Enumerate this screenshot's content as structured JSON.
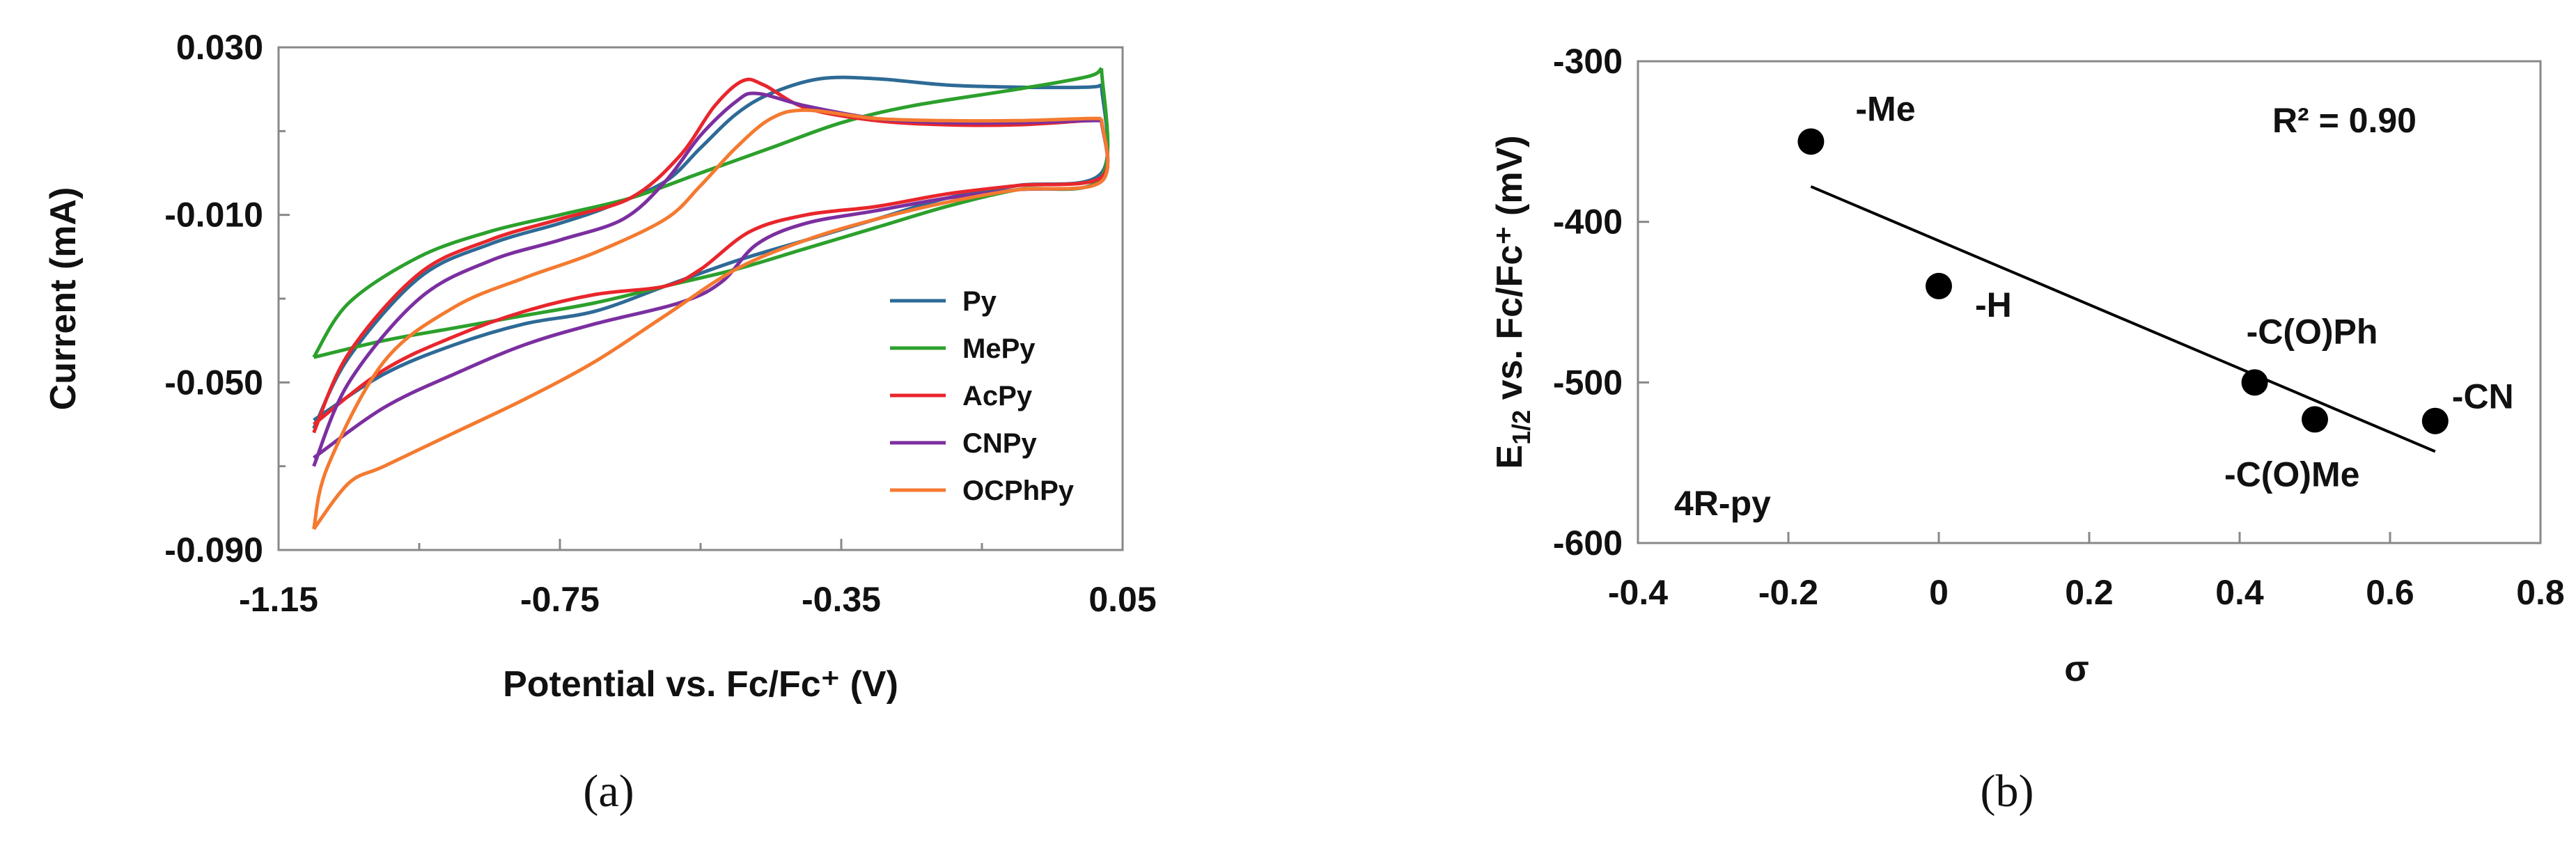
{
  "chart_data": [
    {
      "type": "line",
      "panel": "a",
      "caption": "(a)",
      "xlabel": "Potential vs. Fc/Fc⁺ (V)",
      "ylabel": "Current (mA)",
      "xlim": [
        -1.15,
        0.05
      ],
      "ylim": [
        -0.09,
        0.03
      ],
      "xticks": [
        "-1.15",
        "-0.75",
        "-0.35",
        "0.05"
      ],
      "xtick_values": [
        -1.15,
        -0.75,
        -0.35,
        0.05
      ],
      "yticks": [
        "0.030",
        "-0.010",
        "-0.050",
        "-0.090"
      ],
      "ytick_values": [
        0.03,
        -0.01,
        -0.05,
        -0.09
      ],
      "legend_position": "bottom-right",
      "series": [
        {
          "name": "Py",
          "color": "#2e6a96",
          "forward": [
            [
              -1.1,
              -0.061
            ],
            [
              -1.05,
              -0.044
            ],
            [
              -0.95,
              -0.025
            ],
            [
              -0.85,
              -0.017
            ],
            [
              -0.75,
              -0.012
            ],
            [
              -0.68,
              -0.008
            ],
            [
              -0.6,
              -0.002
            ],
            [
              -0.55,
              0.006
            ],
            [
              -0.5,
              0.014
            ],
            [
              -0.45,
              0.019
            ],
            [
              -0.38,
              0.0225
            ],
            [
              -0.3,
              0.0225
            ],
            [
              -0.2,
              0.021
            ],
            [
              -0.1,
              0.0205
            ],
            [
              0.0,
              0.0205
            ],
            [
              0.02,
              0.021
            ]
          ],
          "reverse": [
            [
              0.02,
              0.021
            ],
            [
              0.02,
              0.0
            ],
            [
              -0.1,
              -0.003
            ],
            [
              -0.2,
              -0.006
            ],
            [
              -0.3,
              -0.011
            ],
            [
              -0.4,
              -0.016
            ],
            [
              -0.5,
              -0.021
            ],
            [
              -0.6,
              -0.027
            ],
            [
              -0.7,
              -0.033
            ],
            [
              -0.8,
              -0.036
            ],
            [
              -0.9,
              -0.041
            ],
            [
              -1.0,
              -0.048
            ],
            [
              -1.1,
              -0.059
            ]
          ]
        },
        {
          "name": "MePy",
          "color": "#2ca02c",
          "forward": [
            [
              -1.1,
              -0.044
            ],
            [
              -1.05,
              -0.031
            ],
            [
              -0.95,
              -0.02
            ],
            [
              -0.85,
              -0.014
            ],
            [
              -0.75,
              -0.01
            ],
            [
              -0.65,
              -0.006
            ],
            [
              -0.55,
              0.0
            ],
            [
              -0.45,
              0.006
            ],
            [
              -0.35,
              0.012
            ],
            [
              -0.25,
              0.016
            ],
            [
              -0.1,
              0.02
            ],
            [
              0.0,
              0.023
            ],
            [
              0.02,
              0.025
            ]
          ],
          "reverse": [
            [
              0.02,
              0.025
            ],
            [
              0.02,
              -0.001
            ],
            [
              -0.1,
              -0.004
            ],
            [
              -0.2,
              -0.008
            ],
            [
              -0.3,
              -0.013
            ],
            [
              -0.4,
              -0.018
            ],
            [
              -0.5,
              -0.023
            ],
            [
              -0.6,
              -0.027
            ],
            [
              -0.7,
              -0.031
            ],
            [
              -0.8,
              -0.034
            ],
            [
              -0.9,
              -0.037
            ],
            [
              -1.0,
              -0.04
            ],
            [
              -1.1,
              -0.044
            ]
          ]
        },
        {
          "name": "AcPy",
          "color": "#e8262c",
          "forward": [
            [
              -1.1,
              -0.062
            ],
            [
              -1.05,
              -0.043
            ],
            [
              -0.95,
              -0.024
            ],
            [
              -0.85,
              -0.016
            ],
            [
              -0.75,
              -0.011
            ],
            [
              -0.65,
              -0.006
            ],
            [
              -0.58,
              0.004
            ],
            [
              -0.53,
              0.016
            ],
            [
              -0.49,
              0.022
            ],
            [
              -0.46,
              0.021
            ],
            [
              -0.4,
              0.0155
            ],
            [
              -0.3,
              0.0125
            ],
            [
              -0.2,
              0.0115
            ],
            [
              -0.1,
              0.0115
            ],
            [
              0.0,
              0.0125
            ],
            [
              0.02,
              0.0125
            ]
          ],
          "reverse": [
            [
              0.02,
              0.0125
            ],
            [
              0.02,
              -0.001
            ],
            [
              -0.1,
              -0.003
            ],
            [
              -0.2,
              -0.005
            ],
            [
              -0.3,
              -0.008
            ],
            [
              -0.4,
              -0.01
            ],
            [
              -0.48,
              -0.014
            ],
            [
              -0.55,
              -0.023
            ],
            [
              -0.6,
              -0.027
            ],
            [
              -0.7,
              -0.029
            ],
            [
              -0.8,
              -0.033
            ],
            [
              -0.9,
              -0.039
            ],
            [
              -1.0,
              -0.047
            ],
            [
              -1.1,
              -0.06
            ]
          ]
        },
        {
          "name": "CNPy",
          "color": "#7b2fa0",
          "forward": [
            [
              -1.1,
              -0.07
            ],
            [
              -1.05,
              -0.05
            ],
            [
              -0.95,
              -0.03
            ],
            [
              -0.85,
              -0.021
            ],
            [
              -0.75,
              -0.016
            ],
            [
              -0.66,
              -0.011
            ],
            [
              -0.6,
              -0.002
            ],
            [
              -0.55,
              0.009
            ],
            [
              -0.5,
              0.017
            ],
            [
              -0.47,
              0.019
            ],
            [
              -0.4,
              0.016
            ],
            [
              -0.3,
              0.013
            ],
            [
              -0.2,
              0.012
            ],
            [
              -0.1,
              0.012
            ],
            [
              0.0,
              0.0125
            ],
            [
              0.02,
              0.0125
            ]
          ],
          "reverse": [
            [
              0.02,
              0.0125
            ],
            [
              0.02,
              -0.002
            ],
            [
              -0.1,
              -0.004
            ],
            [
              -0.2,
              -0.006
            ],
            [
              -0.3,
              -0.009
            ],
            [
              -0.4,
              -0.012
            ],
            [
              -0.47,
              -0.017
            ],
            [
              -0.52,
              -0.026
            ],
            [
              -0.58,
              -0.031
            ],
            [
              -0.7,
              -0.036
            ],
            [
              -0.8,
              -0.041
            ],
            [
              -0.9,
              -0.048
            ],
            [
              -1.0,
              -0.056
            ],
            [
              -1.1,
              -0.068
            ]
          ]
        },
        {
          "name": "OCPhPy",
          "color": "#f47a30",
          "forward": [
            [
              -1.1,
              -0.085
            ],
            [
              -1.08,
              -0.07
            ],
            [
              -1.0,
              -0.045
            ],
            [
              -0.9,
              -0.032
            ],
            [
              -0.8,
              -0.025
            ],
            [
              -0.7,
              -0.019
            ],
            [
              -0.6,
              -0.011
            ],
            [
              -0.55,
              -0.003
            ],
            [
              -0.5,
              0.006
            ],
            [
              -0.45,
              0.013
            ],
            [
              -0.4,
              0.015
            ],
            [
              -0.3,
              0.013
            ],
            [
              -0.2,
              0.0125
            ],
            [
              -0.1,
              0.0125
            ],
            [
              0.0,
              0.013
            ],
            [
              0.02,
              0.013
            ]
          ],
          "reverse": [
            [
              0.02,
              0.013
            ],
            [
              0.02,
              -0.002
            ],
            [
              -0.1,
              -0.004
            ],
            [
              -0.2,
              -0.007
            ],
            [
              -0.3,
              -0.011
            ],
            [
              -0.4,
              -0.016
            ],
            [
              -0.5,
              -0.023
            ],
            [
              -0.6,
              -0.034
            ],
            [
              -0.7,
              -0.045
            ],
            [
              -0.8,
              -0.054
            ],
            [
              -0.9,
              -0.062
            ],
            [
              -1.0,
              -0.07
            ],
            [
              -1.05,
              -0.074
            ],
            [
              -1.1,
              -0.085
            ]
          ]
        }
      ]
    },
    {
      "type": "scatter",
      "panel": "b",
      "caption": "(b)",
      "xlabel": "σ",
      "ylabel": "E1/2 vs. Fc/Fc⁺ (mV)",
      "ylabel_main": "E",
      "ylabel_sub": "1/2",
      "ylabel_rest": " vs. Fc/Fc⁺ (mV)",
      "xlim": [
        -0.4,
        0.8
      ],
      "ylim": [
        -600,
        -300
      ],
      "xticks": [
        "-0.4",
        "-0.2",
        "0",
        "0.2",
        "0.4",
        "0.6",
        "0.8"
      ],
      "xtick_values": [
        -0.4,
        -0.2,
        0,
        0.2,
        0.4,
        0.6,
        0.8
      ],
      "yticks": [
        "-300",
        "-400",
        "-500",
        "-600"
      ],
      "ytick_values": [
        -300,
        -400,
        -500,
        -600
      ],
      "annotation_r2": "R² = 0.90",
      "annotation_series": "4R-py",
      "fit_line": {
        "x": [
          -0.17,
          0.66
        ],
        "y": [
          -378,
          -543
        ]
      },
      "points": [
        {
          "label": "-Me",
          "x": -0.17,
          "y": -350
        },
        {
          "label": "-H",
          "x": 0.0,
          "y": -440
        },
        {
          "label": "-C(O)Ph",
          "x": 0.42,
          "y": -500
        },
        {
          "label": "-C(O)Me",
          "x": 0.5,
          "y": -523
        },
        {
          "label": "-CN",
          "x": 0.66,
          "y": -524
        }
      ]
    }
  ]
}
